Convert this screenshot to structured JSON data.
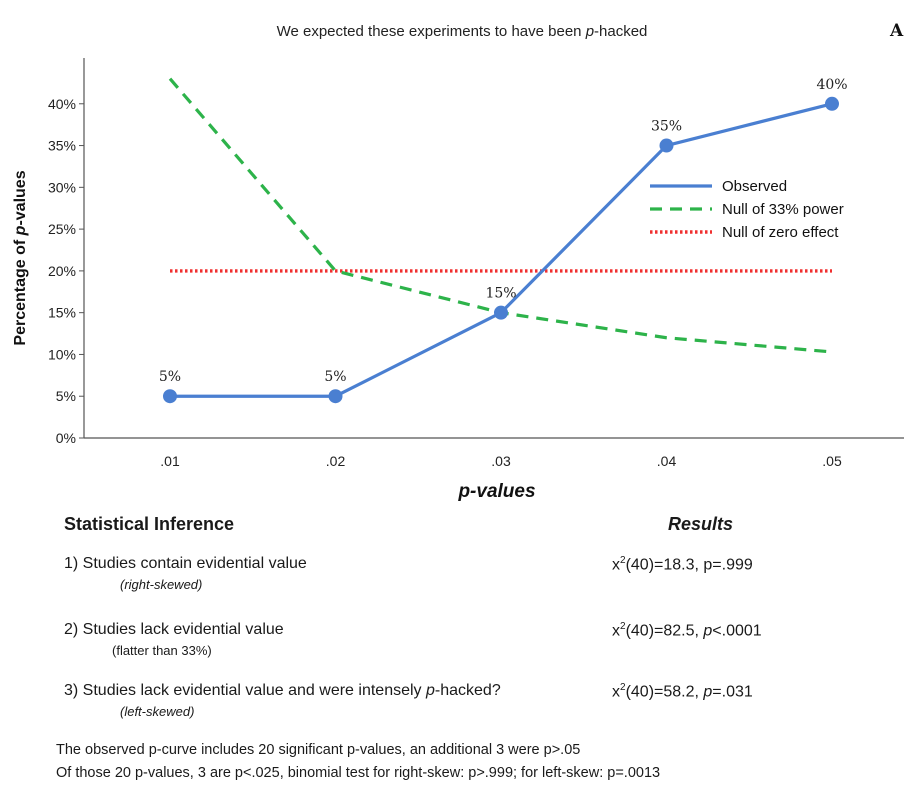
{
  "chart_data": {
    "type": "line",
    "title": "We expected these experiments to have been p-hacked",
    "title_parts": {
      "before": "We expected these experiments to have been ",
      "italic": "p",
      "after": "-hacked"
    },
    "panel_label": "A",
    "xlabel": "p-values",
    "ylabel": "Percentage of p-values",
    "x": [
      ".01",
      ".02",
      ".03",
      ".04",
      ".05"
    ],
    "x_numeric": [
      0.01,
      0.02,
      0.03,
      0.04,
      0.05
    ],
    "ylim": [
      0,
      45
    ],
    "yticks": [
      0,
      5,
      10,
      15,
      20,
      25,
      30,
      35,
      40
    ],
    "ytick_labels": [
      "0%",
      "5%",
      "10%",
      "15%",
      "20%",
      "25%",
      "30%",
      "35%",
      "40%"
    ],
    "grid": false,
    "legend_position": "right",
    "series": [
      {
        "name": "Observed",
        "style": "solid",
        "color": "#4a7fd1",
        "values": [
          5,
          5,
          15,
          35,
          40
        ],
        "labels": [
          "5%",
          "5%",
          "15%",
          "35%",
          "40%"
        ]
      },
      {
        "name": "Null of 33% power",
        "style": "dashed",
        "color": "#2db34a",
        "values": [
          43,
          20,
          15,
          12,
          10.3
        ]
      },
      {
        "name": "Null of zero effect",
        "style": "dotted",
        "color": "#f03030",
        "values": [
          20,
          20,
          20,
          20,
          20
        ]
      }
    ]
  },
  "inference": {
    "header_left": "Statistical Inference",
    "header_right": "Results",
    "items": [
      {
        "label": "1) Studies contain evidential value",
        "sub": "(right-skewed)",
        "res_chi": "x",
        "res_df": "2",
        "res_rest_before": "(40)=18.3, p=.999",
        "res_p_italic": "",
        "res_rest_after": ""
      },
      {
        "label": "2) Studies lack evidential value",
        "sub": "(flatter than 33%)",
        "res_chi": "x",
        "res_df": "2",
        "res_rest_before": "(40)=82.5, ",
        "res_p_italic": "p",
        "res_rest_after": "<.0001"
      },
      {
        "label_before": "3) Studies lack evidential value and were intensely ",
        "label_italic": "p",
        "label_after": "-hacked?",
        "sub": "(left-skewed)",
        "res_chi": "x",
        "res_df": "2",
        "res_rest_before": "(40)=58.2, ",
        "res_p_italic": "p",
        "res_rest_after": "=.031"
      }
    ],
    "footnotes": [
      "The observed p-curve includes 20 significant p-values, an additional 3 were p>.05",
      "Of those 20 p-values, 3 are p<.025, binomial test for right-skew: p>.999; for left-skew: p=.0013"
    ]
  }
}
